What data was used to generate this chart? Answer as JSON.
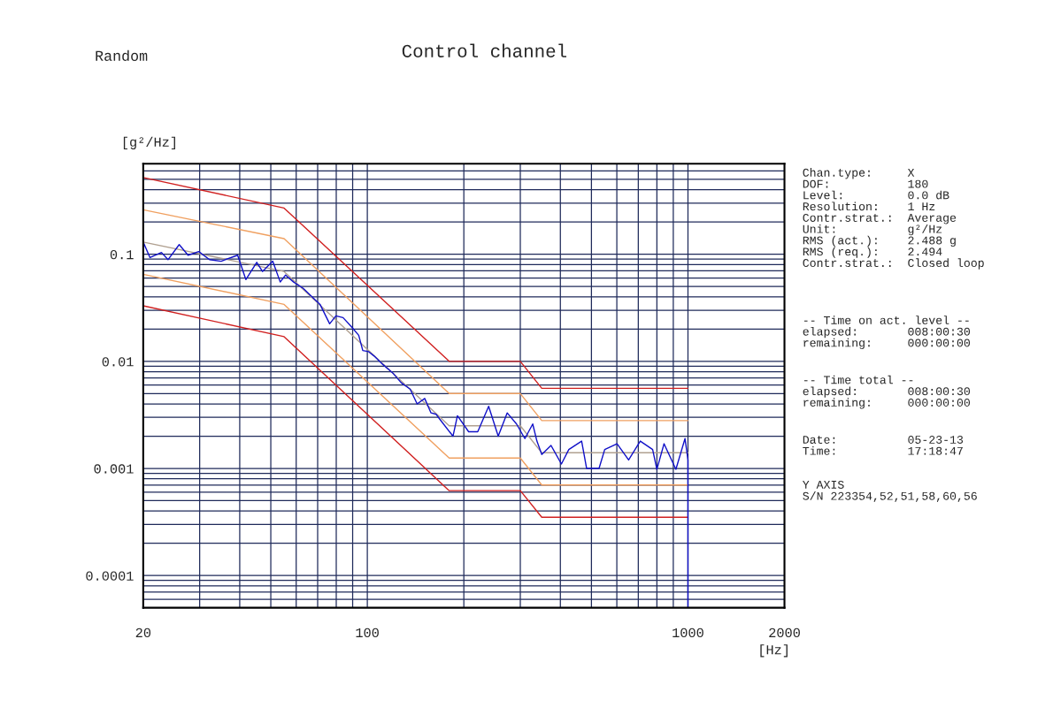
{
  "chart_data": {
    "type": "line",
    "title": "Control channel",
    "xlabel": "[Hz]",
    "ylabel": "[g²/Hz]",
    "log": "xy",
    "grid": true,
    "xlim": [
      20,
      2000
    ],
    "xticks": [
      20,
      100,
      1000,
      2000
    ],
    "ylim": [
      5e-05,
      0.7
    ],
    "yticks": [
      0.0001,
      0.001,
      0.01,
      0.1
    ],
    "series": [
      {
        "color": "#d02020",
        "x": [
          20,
          55,
          180,
          300,
          350,
          1000
        ],
        "values": [
          0.52,
          0.27,
          0.01,
          0.01,
          0.0056,
          0.0056
        ]
      },
      {
        "color": "#f0a060",
        "x": [
          20,
          55,
          180,
          300,
          350,
          1000
        ],
        "values": [
          0.26,
          0.14,
          0.005,
          0.005,
          0.0028,
          0.0028
        ]
      },
      {
        "color": "#b0a090",
        "x": [
          20,
          55,
          180,
          300,
          350,
          1000
        ],
        "values": [
          0.13,
          0.069,
          0.0025,
          0.0025,
          0.0014,
          0.0014
        ]
      },
      {
        "color": "#f0a060",
        "x": [
          20,
          55,
          180,
          300,
          350,
          1000
        ],
        "values": [
          0.065,
          0.034,
          0.00125,
          0.00125,
          0.0007,
          0.0007
        ]
      },
      {
        "color": "#d02020",
        "x": [
          20,
          55,
          180,
          300,
          350,
          1000
        ],
        "values": [
          0.033,
          0.017,
          0.00062,
          0.00062,
          0.00035,
          0.00035
        ]
      },
      {
        "color": "#1010c8",
        "x": [
          20,
          21,
          22.8,
          23.9,
          25.9,
          27.6,
          29.8,
          32.2,
          35,
          39.4,
          41.8,
          45.2,
          47.1,
          50.7,
          53.5,
          55.6,
          58.9,
          63.1,
          67.3,
          71.2,
          76.3,
          79.8,
          84,
          89,
          94,
          96.8,
          101,
          105,
          112,
          120,
          127.6,
          136,
          143,
          151,
          158,
          164,
          168,
          185,
          191,
          207,
          221,
          239,
          256,
          273,
          292,
          310,
          328,
          338,
          350,
          374,
          403,
          425,
          466,
          483,
          528,
          550,
          601,
          653,
          710,
          776,
          800,
          842,
          917,
          979,
          1000,
          1000
        ],
        "values": [
          0.13,
          0.093,
          0.104,
          0.089,
          0.123,
          0.098,
          0.106,
          0.089,
          0.086,
          0.098,
          0.058,
          0.084,
          0.069,
          0.086,
          0.055,
          0.064,
          0.055,
          0.048,
          0.04,
          0.034,
          0.0224,
          0.0266,
          0.0256,
          0.0212,
          0.0175,
          0.0126,
          0.0123,
          0.0112,
          0.0093,
          0.0078,
          0.0063,
          0.0055,
          0.004,
          0.0045,
          0.0033,
          0.0032,
          0.0029,
          0.002,
          0.0031,
          0.0022,
          0.0022,
          0.0038,
          0.002,
          0.0033,
          0.0026,
          0.0019,
          0.0026,
          0.0018,
          0.00135,
          0.00164,
          0.0011,
          0.0015,
          0.0018,
          0.001,
          0.001,
          0.0015,
          0.0017,
          0.0012,
          0.0018,
          0.0015,
          0.00098,
          0.0017,
          0.00098,
          0.0019,
          0.0012,
          5e-05
        ]
      }
    ],
    "annotations": [
      "Random",
      "Chan.type:     X\nDOF:           180\nLevel:         0.0 dB\nResolution:    1 Hz\nContr.strat.:  Average\nUnit:          g²/Hz\nRMS (act.):    2.488 g\nRMS (req.):    2.494\nContr.strat.:  Closed loop",
      "-- Time on act. level --\nelapsed:       008:00:30\nremaining:     000:00:00",
      "-- Time total --\nelapsed:       008:00:30\nremaining:     000:00:00",
      "Date:          05-23-13\nTime:          17:18:47",
      "Y AXIS\nS/N 223354,52,51,58,60,56"
    ]
  }
}
